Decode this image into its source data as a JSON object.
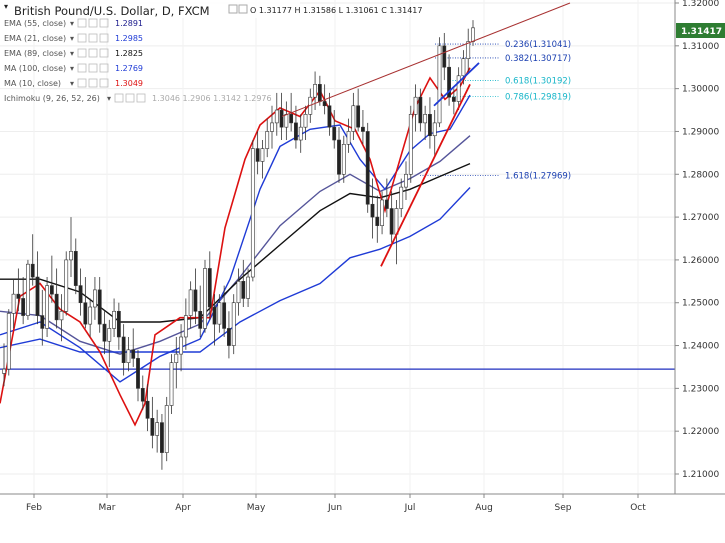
{
  "header": {
    "title": "British Pound/U.S. Dollar, D, FXCM",
    "ohlc": "O 1.31177  H 1.31586  L 1.31061  C 1.31417"
  },
  "indicators": [
    {
      "label": "EMA (55, close)",
      "value": "1.2891",
      "color": "#1a1a8c"
    },
    {
      "label": "EMA (21, close)",
      "value": "1.2985",
      "color": "#1f3bd6"
    },
    {
      "label": "EMA (89, close)",
      "value": "1.2825",
      "color": "#111111"
    },
    {
      "label": "MA (100, close)",
      "value": "1.2769",
      "color": "#1f3bd6"
    },
    {
      "label": "MA (10, close)",
      "value": "1.3049",
      "color": "#d11"
    },
    {
      "label": "Ichimoku (9, 26, 52, 26)",
      "value": "1.3046  1.2906  1.3142  1.2976",
      "color": "#aaaaaa"
    }
  ],
  "chart_data": {
    "type": "candlestick",
    "instrument": "British Pound/U.S. Dollar",
    "timeframe": "D",
    "source": "FXCM",
    "ylim": [
      1.205,
      1.32
    ],
    "y_ticks": [
      "1.32000",
      "1.31000",
      "1.30000",
      "1.29000",
      "1.28000",
      "1.27000",
      "1.26000",
      "1.25000",
      "1.24000",
      "1.23000",
      "1.22000",
      "1.21000"
    ],
    "x_ticks": [
      "Feb",
      "Mar",
      "Apr",
      "May",
      "Jun",
      "Jul",
      "Aug",
      "Sep",
      "Oct"
    ],
    "last_price": "1.31417",
    "horizontal_line": 1.2345,
    "fibonacci_levels": [
      {
        "label": "0.236(1.31041)",
        "value": 1.31041,
        "color": "#1a3fb0"
      },
      {
        "label": "0.382(1.30717)",
        "value": 1.30717,
        "color": "#1a3fb0"
      },
      {
        "label": "0.618(1.30192)",
        "value": 1.30192,
        "color": "#18b6c9"
      },
      {
        "label": "0.786(1.29819)",
        "value": 1.29819,
        "color": "#18b6c9"
      },
      {
        "label": "1.618(1.27969)",
        "value": 1.27969,
        "color": "#1a3fb0"
      }
    ],
    "trendlines": [
      {
        "name": "resistance",
        "from": [
          "2017-05-05",
          1.2935
        ],
        "to": [
          "2017-09-01",
          1.32
        ],
        "color": "#a83232"
      },
      {
        "name": "support-1",
        "from": [
          "2017-06-21",
          1.2585
        ],
        "to": [
          "2017-07-24",
          1.301
        ],
        "color": "#d11"
      },
      {
        "name": "support-2",
        "from": [
          "2017-07-14",
          1.296
        ],
        "to": [
          "2017-07-28",
          1.306
        ],
        "color": "#1f3bd6"
      }
    ],
    "ma_series": [
      {
        "name": "EMA (55, close)",
        "color": "#55559a",
        "points": [
          [
            0,
            1.248
          ],
          [
            40,
            1.247
          ],
          [
            80,
            1.241
          ],
          [
            120,
            1.238
          ],
          [
            160,
            1.241
          ],
          [
            200,
            1.245
          ],
          [
            240,
            1.256
          ],
          [
            280,
            1.268
          ],
          [
            320,
            1.276
          ],
          [
            350,
            1.28
          ],
          [
            380,
            1.276
          ],
          [
            410,
            1.279
          ],
          [
            440,
            1.283
          ],
          [
            470,
            1.289
          ]
        ]
      },
      {
        "name": "EMA (89, close)",
        "color": "#111111",
        "points": [
          [
            0,
            1.2555
          ],
          [
            40,
            1.2555
          ],
          [
            80,
            1.2525
          ],
          [
            120,
            1.2455
          ],
          [
            160,
            1.2455
          ],
          [
            200,
            1.2465
          ],
          [
            240,
            1.2555
          ],
          [
            280,
            1.2635
          ],
          [
            320,
            1.2715
          ],
          [
            350,
            1.2755
          ],
          [
            380,
            1.2745
          ],
          [
            410,
            1.2765
          ],
          [
            440,
            1.2795
          ],
          [
            470,
            1.2825
          ]
        ]
      },
      {
        "name": "MA (100, close)",
        "color": "#1f3bd6",
        "points": [
          [
            0,
            1.2395
          ],
          [
            40,
            1.2415
          ],
          [
            80,
            1.2385
          ],
          [
            120,
            1.2385
          ],
          [
            160,
            1.2385
          ],
          [
            200,
            1.2385
          ],
          [
            240,
            1.2455
          ],
          [
            280,
            1.2505
          ],
          [
            320,
            1.2545
          ],
          [
            350,
            1.2605
          ],
          [
            380,
            1.2625
          ],
          [
            410,
            1.2655
          ],
          [
            440,
            1.2695
          ],
          [
            470,
            1.2769
          ]
        ]
      },
      {
        "name": "EMA (21, close)",
        "color": "#1f3bd6",
        "points": [
          [
            0,
            1.2425
          ],
          [
            40,
            1.2455
          ],
          [
            80,
            1.2395
          ],
          [
            120,
            1.2315
          ],
          [
            140,
            1.2345
          ],
          [
            160,
            1.2375
          ],
          [
            200,
            1.2415
          ],
          [
            230,
            1.2555
          ],
          [
            260,
            1.2765
          ],
          [
            280,
            1.2865
          ],
          [
            310,
            1.2905
          ],
          [
            340,
            1.2915
          ],
          [
            360,
            1.2835
          ],
          [
            385,
            1.2765
          ],
          [
            410,
            1.2855
          ],
          [
            430,
            1.2895
          ],
          [
            450,
            1.2905
          ],
          [
            470,
            1.2985
          ]
        ]
      },
      {
        "name": "MA (10, close)",
        "color": "#d11",
        "points": [
          [
            0,
            1.2265
          ],
          [
            20,
            1.2515
          ],
          [
            40,
            1.2545
          ],
          [
            60,
            1.2485
          ],
          [
            80,
            1.2455
          ],
          [
            100,
            1.2385
          ],
          [
            120,
            1.2285
          ],
          [
            135,
            1.2215
          ],
          [
            145,
            1.2265
          ],
          [
            155,
            1.2425
          ],
          [
            180,
            1.2465
          ],
          [
            210,
            1.2465
          ],
          [
            225,
            1.2675
          ],
          [
            245,
            1.2835
          ],
          [
            260,
            1.2915
          ],
          [
            280,
            1.2955
          ],
          [
            300,
            1.2935
          ],
          [
            320,
            1.2995
          ],
          [
            335,
            1.2925
          ],
          [
            355,
            1.2905
          ],
          [
            370,
            1.2835
          ],
          [
            385,
            1.2715
          ],
          [
            400,
            1.2835
          ],
          [
            415,
            1.2955
          ],
          [
            430,
            1.3025
          ],
          [
            445,
            1.2975
          ],
          [
            460,
            1.3005
          ],
          [
            470,
            1.3049
          ]
        ]
      }
    ],
    "candles": [
      [
        1.2335,
        1.2405,
        1.2305,
        1.2345
      ],
      [
        1.2345,
        1.2485,
        1.233,
        1.2475
      ],
      [
        1.2475,
        1.2555,
        1.244,
        1.252
      ],
      [
        1.252,
        1.258,
        1.248,
        1.251
      ],
      [
        1.251,
        1.256,
        1.245,
        1.247
      ],
      [
        1.247,
        1.26,
        1.246,
        1.259
      ],
      [
        1.259,
        1.266,
        1.254,
        1.256
      ],
      [
        1.256,
        1.262,
        1.245,
        1.247
      ],
      [
        1.247,
        1.253,
        1.24,
        1.244
      ],
      [
        1.244,
        1.256,
        1.242,
        1.254
      ],
      [
        1.254,
        1.261,
        1.25,
        1.252
      ],
      [
        1.252,
        1.258,
        1.244,
        1.246
      ],
      [
        1.246,
        1.252,
        1.241,
        1.248
      ],
      [
        1.248,
        1.262,
        1.247,
        1.26
      ],
      [
        1.26,
        1.27,
        1.256,
        1.262
      ],
      [
        1.262,
        1.265,
        1.252,
        1.254
      ],
      [
        1.254,
        1.258,
        1.247,
        1.25
      ],
      [
        1.25,
        1.256,
        1.244,
        1.245
      ],
      [
        1.245,
        1.251,
        1.242,
        1.249
      ],
      [
        1.249,
        1.256,
        1.246,
        1.253
      ],
      [
        1.253,
        1.256,
        1.243,
        1.245
      ],
      [
        1.245,
        1.248,
        1.238,
        1.241
      ],
      [
        1.241,
        1.246,
        1.235,
        1.244
      ],
      [
        1.244,
        1.251,
        1.242,
        1.248
      ],
      [
        1.248,
        1.25,
        1.239,
        1.242
      ],
      [
        1.242,
        1.245,
        1.233,
        1.236
      ],
      [
        1.236,
        1.242,
        1.234,
        1.239
      ],
      [
        1.239,
        1.244,
        1.235,
        1.237
      ],
      [
        1.237,
        1.239,
        1.227,
        1.23
      ],
      [
        1.23,
        1.233,
        1.225,
        1.227
      ],
      [
        1.227,
        1.231,
        1.22,
        1.223
      ],
      [
        1.223,
        1.228,
        1.216,
        1.219
      ],
      [
        1.219,
        1.225,
        1.215,
        1.222
      ],
      [
        1.222,
        1.224,
        1.211,
        1.215
      ],
      [
        1.215,
        1.228,
        1.213,
        1.226
      ],
      [
        1.226,
        1.238,
        1.224,
        1.236
      ],
      [
        1.236,
        1.242,
        1.23,
        1.238
      ],
      [
        1.238,
        1.245,
        1.234,
        1.242
      ],
      [
        1.242,
        1.251,
        1.239,
        1.247
      ],
      [
        1.247,
        1.255,
        1.244,
        1.253
      ],
      [
        1.253,
        1.258,
        1.245,
        1.248
      ],
      [
        1.248,
        1.254,
        1.242,
        1.244
      ],
      [
        1.244,
        1.26,
        1.243,
        1.258
      ],
      [
        1.258,
        1.262,
        1.246,
        1.249
      ],
      [
        1.249,
        1.252,
        1.24,
        1.245
      ],
      [
        1.245,
        1.252,
        1.243,
        1.25
      ],
      [
        1.25,
        1.254,
        1.242,
        1.244
      ],
      [
        1.244,
        1.248,
        1.237,
        1.24
      ],
      [
        1.24,
        1.252,
        1.238,
        1.25
      ],
      [
        1.25,
        1.258,
        1.247,
        1.255
      ],
      [
        1.255,
        1.26,
        1.249,
        1.251
      ],
      [
        1.251,
        1.258,
        1.249,
        1.256
      ],
      [
        1.256,
        1.288,
        1.255,
        1.286
      ],
      [
        1.286,
        1.29,
        1.28,
        1.283
      ],
      [
        1.283,
        1.288,
        1.279,
        1.286
      ],
      [
        1.286,
        1.293,
        1.284,
        1.29
      ],
      [
        1.29,
        1.296,
        1.286,
        1.292
      ],
      [
        1.292,
        1.299,
        1.289,
        1.295
      ],
      [
        1.295,
        1.299,
        1.288,
        1.291
      ],
      [
        1.291,
        1.297,
        1.288,
        1.294
      ],
      [
        1.294,
        1.299,
        1.29,
        1.292
      ],
      [
        1.292,
        1.296,
        1.286,
        1.288
      ],
      [
        1.288,
        1.294,
        1.285,
        1.291
      ],
      [
        1.291,
        1.296,
        1.288,
        1.294
      ],
      [
        1.294,
        1.3,
        1.292,
        1.298
      ],
      [
        1.298,
        1.304,
        1.295,
        1.301
      ],
      [
        1.301,
        1.303,
        1.296,
        1.297
      ],
      [
        1.297,
        1.301,
        1.294,
        1.296
      ],
      [
        1.296,
        1.299,
        1.289,
        1.291
      ],
      [
        1.291,
        1.295,
        1.286,
        1.288
      ],
      [
        1.288,
        1.291,
        1.278,
        1.28
      ],
      [
        1.28,
        1.289,
        1.278,
        1.287
      ],
      [
        1.287,
        1.293,
        1.285,
        1.29
      ],
      [
        1.29,
        1.299,
        1.288,
        1.296
      ],
      [
        1.296,
        1.3,
        1.29,
        1.291
      ],
      [
        1.291,
        1.295,
        1.287,
        1.29
      ],
      [
        1.29,
        1.292,
        1.271,
        1.273
      ],
      [
        1.273,
        1.279,
        1.265,
        1.27
      ],
      [
        1.27,
        1.275,
        1.264,
        1.268
      ],
      [
        1.268,
        1.276,
        1.266,
        1.274
      ],
      [
        1.274,
        1.279,
        1.27,
        1.272
      ],
      [
        1.272,
        1.276,
        1.264,
        1.266
      ],
      [
        1.266,
        1.274,
        1.259,
        1.272
      ],
      [
        1.272,
        1.279,
        1.27,
        1.277
      ],
      [
        1.277,
        1.283,
        1.274,
        1.28
      ],
      [
        1.28,
        1.296,
        1.278,
        1.294
      ],
      [
        1.294,
        1.301,
        1.29,
        1.298
      ],
      [
        1.298,
        1.3,
        1.29,
        1.292
      ],
      [
        1.292,
        1.296,
        1.288,
        1.294
      ],
      [
        1.294,
        1.298,
        1.286,
        1.289
      ],
      [
        1.289,
        1.295,
        1.284,
        1.292
      ],
      [
        1.292,
        1.312,
        1.291,
        1.31
      ],
      [
        1.31,
        1.313,
        1.302,
        1.305
      ],
      [
        1.305,
        1.308,
        1.296,
        1.298
      ],
      [
        1.298,
        1.3,
        1.294,
        1.297
      ],
      [
        1.297,
        1.305,
        1.295,
        1.303
      ],
      [
        1.303,
        1.309,
        1.301,
        1.307
      ],
      [
        1.307,
        1.314,
        1.304,
        1.311
      ],
      [
        1.311,
        1.316,
        1.31,
        1.3142
      ]
    ]
  }
}
